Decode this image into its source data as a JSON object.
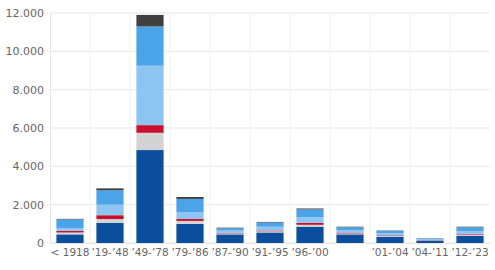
{
  "chart_data": {
    "type": "bar",
    "stacked": true,
    "grid": true,
    "categories": [
      "< 1918",
      "’19-’48",
      "’49-’78",
      "’79-’86",
      "’87-’90",
      "’91-’95",
      "’96-’00",
      null,
      "’01-’04",
      "’04-’11",
      "’12-’23"
    ],
    "series": [
      {
        "color": "#0b4f9c",
        "values": [
          450,
          1050,
          4850,
          1000,
          450,
          550,
          850,
          450,
          330,
          130,
          380
        ]
      },
      {
        "color": "#d3d3d3",
        "values": [
          100,
          200,
          900,
          150,
          50,
          60,
          100,
          50,
          40,
          20,
          60
        ]
      },
      {
        "color": "#c8102e",
        "values": [
          80,
          200,
          400,
          100,
          30,
          40,
          100,
          40,
          30,
          10,
          40
        ]
      },
      {
        "color": "#8ec5f0",
        "values": [
          150,
          550,
          3100,
          350,
          120,
          200,
          300,
          130,
          110,
          40,
          140
        ]
      },
      {
        "color": "#4ba3e8",
        "values": [
          450,
          750,
          2050,
          700,
          120,
          220,
          400,
          150,
          120,
          40,
          200
        ]
      },
      {
        "color": "#3f3f3f",
        "values": [
          30,
          100,
          600,
          100,
          30,
          30,
          50,
          30,
          20,
          10,
          30
        ]
      }
    ],
    "ylim": [
      0,
      12000
    ],
    "yticks": [
      0,
      {
        "value": 2000,
        "label": "2.000"
      },
      {
        "value": 4000,
        "label": "4.000"
      },
      {
        "value": 6000,
        "label": "6.000"
      },
      {
        "value": 8000,
        "label": "8.000"
      },
      {
        "value": 10000,
        "label": "10.000"
      },
      {
        "value": 12000,
        "label": "12.000"
      }
    ]
  }
}
